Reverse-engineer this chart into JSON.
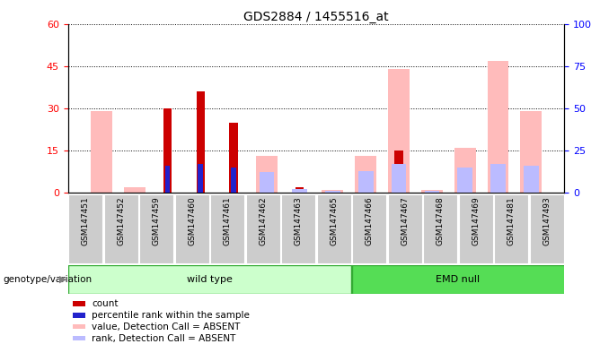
{
  "title": "GDS2884 / 1455516_at",
  "samples": [
    "GSM147451",
    "GSM147452",
    "GSM147459",
    "GSM147460",
    "GSM147461",
    "GSM147462",
    "GSM147463",
    "GSM147465",
    "GSM147466",
    "GSM147467",
    "GSM147468",
    "GSM147469",
    "GSM147481",
    "GSM147493"
  ],
  "n_wild": 8,
  "n_emd": 6,
  "count": [
    0,
    0,
    30,
    36,
    25,
    0,
    2,
    0,
    0,
    15,
    0,
    0,
    0,
    0
  ],
  "percentile_rank": [
    0,
    0,
    16,
    17,
    15,
    0,
    0,
    0,
    0,
    0,
    0,
    0,
    0,
    0
  ],
  "value_absent": [
    29,
    2,
    0,
    0,
    0,
    13,
    0,
    1,
    13,
    44,
    1,
    16,
    47,
    29
  ],
  "rank_absent": [
    0,
    0,
    0,
    0,
    0,
    12,
    2,
    1,
    13,
    17,
    1,
    15,
    17,
    16
  ],
  "ylim_left": [
    0,
    60
  ],
  "ylim_right": [
    0,
    100
  ],
  "yticks_left": [
    0,
    15,
    30,
    45,
    60
  ],
  "yticks_right": [
    0,
    25,
    50,
    75,
    100
  ],
  "color_count": "#cc0000",
  "color_rank": "#2222cc",
  "color_value_absent": "#ffbbbb",
  "color_rank_absent": "#bbbbff",
  "color_wt_bg": "#ccffcc",
  "color_emd_bg": "#55dd55",
  "color_sample_bg": "#cccccc",
  "legend_items": [
    "count",
    "percentile rank within the sample",
    "value, Detection Call = ABSENT",
    "rank, Detection Call = ABSENT"
  ],
  "legend_colors": [
    "#cc0000",
    "#2222cc",
    "#ffbbbb",
    "#bbbbff"
  ]
}
